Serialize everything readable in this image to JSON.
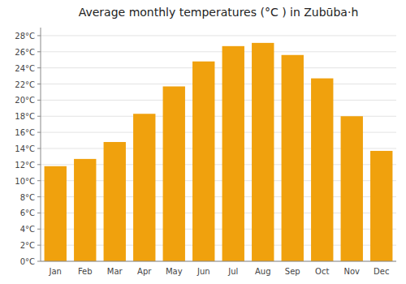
{
  "chart_data": {
    "type": "bar",
    "title": "Average monthly temperatures (°C ) in Zubūba·h",
    "categories": [
      "Jan",
      "Feb",
      "Mar",
      "Apr",
      "May",
      "Jun",
      "Jul",
      "Aug",
      "Sep",
      "Oct",
      "Nov",
      "Dec"
    ],
    "values": [
      11.8,
      12.7,
      14.8,
      18.3,
      21.7,
      24.8,
      26.7,
      27.1,
      25.6,
      22.7,
      18.0,
      13.7
    ],
    "color": "#F0A10D",
    "ylim": [
      0,
      29
    ],
    "yticks": [
      {
        "value": 0,
        "label": "0°C"
      },
      {
        "value": 2,
        "label": "2°C"
      },
      {
        "value": 4,
        "label": "4°C"
      },
      {
        "value": 6,
        "label": "6°C"
      },
      {
        "value": 8,
        "label": "8°C"
      },
      {
        "value": 10,
        "label": "10°C"
      },
      {
        "value": 12,
        "label": "12°C"
      },
      {
        "value": 14,
        "label": "14°C"
      },
      {
        "value": 16,
        "label": "16°C"
      },
      {
        "value": 18,
        "label": "18°C"
      },
      {
        "value": 20,
        "label": "20°C"
      },
      {
        "value": 22,
        "label": "22°C"
      },
      {
        "value": 24,
        "label": "24°C"
      },
      {
        "value": 26,
        "label": "26°C"
      },
      {
        "value": 28,
        "label": "28°C"
      }
    ],
    "grid": true
  }
}
